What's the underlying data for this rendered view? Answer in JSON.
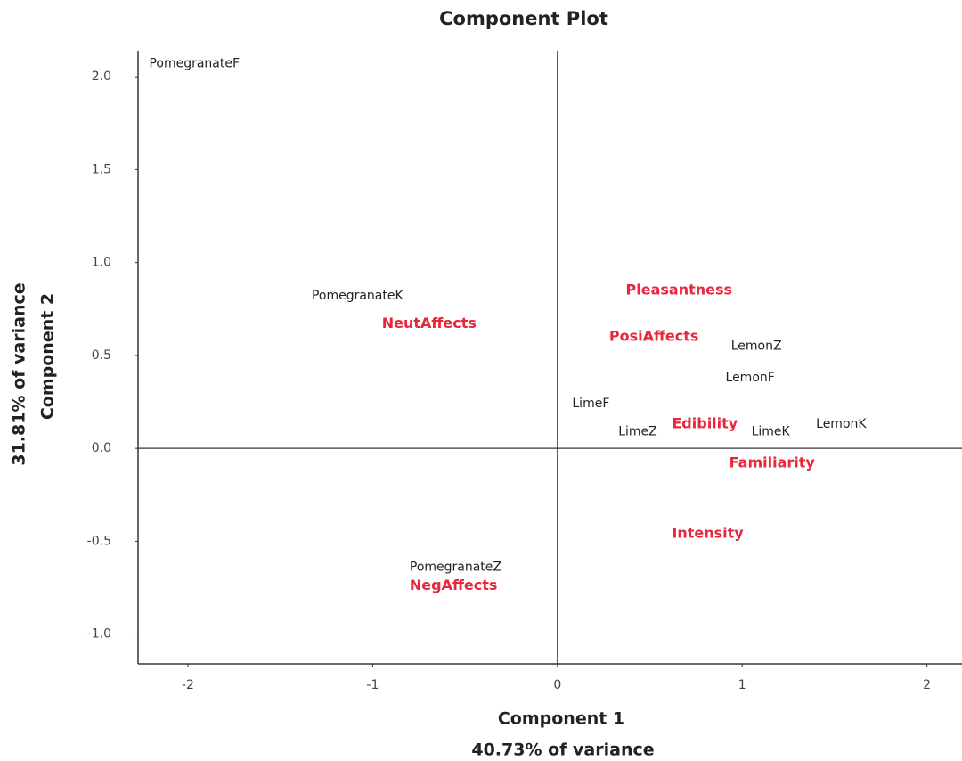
{
  "chart_data": {
    "type": "scatter",
    "title": "Component Plot",
    "xlabel": "Component 1",
    "xlabel2": "40.73% of variance",
    "ylabel": "Component 2",
    "ylabel2": "31.81% of variance",
    "xlim": [
      -2.27,
      2.19
    ],
    "ylim": [
      -1.16,
      2.14
    ],
    "xticks": [
      -2,
      -1,
      0,
      1,
      2
    ],
    "yticks": [
      {
        "value": 2,
        "label": "2.0"
      },
      {
        "value": 1.5,
        "label": "1.5"
      },
      {
        "value": 1,
        "label": "1.0"
      },
      {
        "value": 0.5,
        "label": "0.5"
      },
      {
        "value": 0,
        "label": "0.0"
      },
      {
        "value": -0.5,
        "label": "-0.5"
      },
      {
        "value": -1,
        "label": "-1.0"
      }
    ],
    "series": [
      {
        "color": "#222222",
        "labels": [
          "PomegranateF",
          "PomegranateK",
          "PomegranateZ",
          "LemonZ",
          "LemonF",
          "LemonK",
          "LimeF",
          "LimeZ",
          "LimeK"
        ],
        "x": [
          -2.21,
          -1.33,
          -0.8,
          0.94,
          0.91,
          1.4,
          0.08,
          0.33,
          1.05
        ],
        "values": [
          2.07,
          0.82,
          -0.64,
          0.55,
          0.38,
          0.13,
          0.24,
          0.09,
          0.09
        ]
      },
      {
        "color": "#e8273a",
        "labels": [
          "NeutAffects",
          "Pleasantness",
          "PosiAffects",
          "Edibility",
          "Familiarity",
          "Intensity",
          "NegAffects"
        ],
        "x": [
          -0.95,
          0.37,
          0.28,
          0.62,
          0.93,
          0.62,
          -0.8
        ],
        "values": [
          0.67,
          0.85,
          0.6,
          0.13,
          -0.08,
          -0.46,
          -0.74
        ]
      }
    ]
  }
}
